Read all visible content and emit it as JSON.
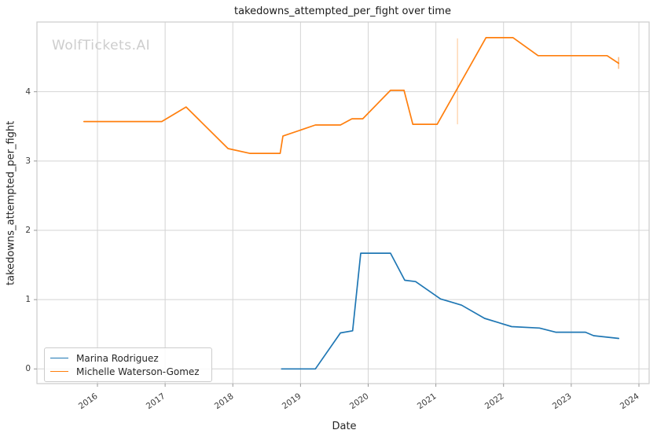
{
  "watermark": {
    "text": "WolfTickets.AI",
    "color": "#cdcdcd"
  },
  "chart_data": {
    "type": "line",
    "title": "takedowns_attempted_per_fight over time",
    "xlabel": "Date",
    "ylabel": "takedowns_attempted_per_fight",
    "x_ticks": [
      2016,
      2017,
      2018,
      2019,
      2020,
      2021,
      2022,
      2023,
      2024
    ],
    "y_ticks": [
      0,
      1,
      2,
      3,
      4
    ],
    "xlim": [
      2015.106,
      2024.151
    ],
    "ylim": [
      -0.212,
      5.006
    ],
    "grid": true,
    "legend_position": "lower left",
    "colors": {
      "grid": "#d4d4d4",
      "spine": "#cccccc",
      "tick_mark": "#999999",
      "text": "#262626"
    },
    "series": [
      {
        "name": "Marina Rodriguez",
        "color": "#1f77b4",
        "points": [
          [
            2018.72,
            0.0
          ],
          [
            2019.22,
            0.0
          ],
          [
            2019.59,
            0.52
          ],
          [
            2019.77,
            0.55
          ],
          [
            2019.89,
            1.67
          ],
          [
            2020.33,
            1.67
          ],
          [
            2020.54,
            1.28
          ],
          [
            2020.7,
            1.26
          ],
          [
            2021.07,
            1.01
          ],
          [
            2021.21,
            0.97
          ],
          [
            2021.38,
            0.92
          ],
          [
            2021.72,
            0.73
          ],
          [
            2022.12,
            0.61
          ],
          [
            2022.53,
            0.59
          ],
          [
            2022.77,
            0.53
          ],
          [
            2023.21,
            0.53
          ],
          [
            2023.33,
            0.48
          ],
          [
            2023.7,
            0.44
          ]
        ],
        "error_bars": []
      },
      {
        "name": "Michelle Waterson-Gomez",
        "color": "#ff7f0e",
        "points": [
          [
            2015.8,
            3.57
          ],
          [
            2016.95,
            3.57
          ],
          [
            2017.31,
            3.78
          ],
          [
            2017.93,
            3.18
          ],
          [
            2018.25,
            3.11
          ],
          [
            2018.7,
            3.11
          ],
          [
            2018.74,
            3.36
          ],
          [
            2019.22,
            3.52
          ],
          [
            2019.59,
            3.52
          ],
          [
            2019.76,
            3.61
          ],
          [
            2019.92,
            3.61
          ],
          [
            2020.33,
            4.02
          ],
          [
            2020.53,
            4.02
          ],
          [
            2020.66,
            3.53
          ],
          [
            2021.02,
            3.53
          ],
          [
            2021.74,
            4.78
          ],
          [
            2022.14,
            4.78
          ],
          [
            2022.51,
            4.52
          ],
          [
            2023.53,
            4.52
          ],
          [
            2023.7,
            4.41
          ]
        ],
        "error_bars": [
          {
            "x": 2021.32,
            "from": 3.53,
            "to": 4.77,
            "opacity": 0.3
          },
          {
            "x": 2023.7,
            "from": 4.33,
            "to": 4.5,
            "opacity": 0.55
          }
        ]
      }
    ]
  }
}
